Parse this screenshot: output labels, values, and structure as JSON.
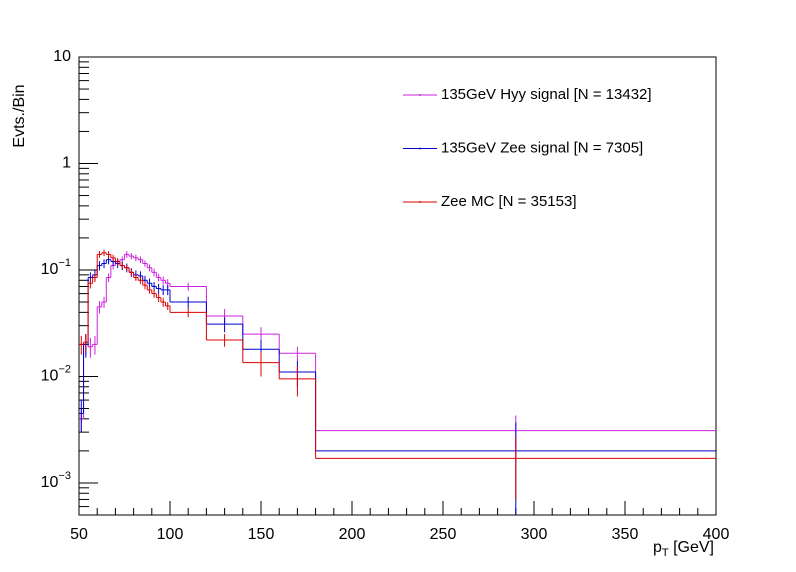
{
  "chart_data": {
    "type": "histogram",
    "y_label": "Evts./Bin",
    "x_label": "p_T [GeV]",
    "bins": [
      50,
      52.5,
      55,
      57.5,
      60,
      62.5,
      65,
      67.5,
      70,
      72.5,
      75,
      77.5,
      80,
      82.5,
      85,
      87.5,
      90,
      92.5,
      95,
      97.5,
      100,
      120,
      140,
      160,
      180,
      400
    ],
    "series": [
      {
        "name": "135GeV Hyy signal [N = 13432]",
        "color": "#cc22dd",
        "values": [
          0.004,
          0.02,
          0.019,
          0.02,
          0.045,
          0.05,
          0.085,
          0.11,
          0.12,
          0.125,
          0.14,
          0.135,
          0.13,
          0.125,
          0.115,
          0.105,
          0.095,
          0.085,
          0.08,
          0.075,
          0.07,
          0.037,
          0.025,
          0.0165,
          0.0031
        ],
        "errors": [
          0.001,
          0.004,
          0.004,
          0.004,
          0.006,
          0.006,
          0.008,
          0.009,
          0.009,
          0.009,
          0.01,
          0.009,
          0.009,
          0.009,
          0.008,
          0.008,
          0.008,
          0.007,
          0.007,
          0.007,
          0.006,
          0.006,
          0.004,
          0.0025,
          0.0012
        ]
      },
      {
        "name": "135GeV Zee signal [N = 7305]",
        "color": "#0000cc",
        "values": [
          0.0045,
          0.02,
          0.085,
          0.09,
          0.11,
          0.115,
          0.125,
          0.12,
          0.115,
          0.11,
          0.105,
          0.095,
          0.09,
          0.088,
          0.08,
          0.075,
          0.07,
          0.067,
          0.065,
          0.065,
          0.05,
          0.031,
          0.018,
          0.011,
          0.002
        ],
        "errors": [
          0.0015,
          0.005,
          0.01,
          0.01,
          0.011,
          0.011,
          0.012,
          0.011,
          0.011,
          0.01,
          0.01,
          0.009,
          0.009,
          0.009,
          0.008,
          0.008,
          0.007,
          0.007,
          0.007,
          0.007,
          0.006,
          0.005,
          0.004,
          0.003,
          0.0017
        ]
      },
      {
        "name": "Zee MC [N = 35153]",
        "color": "#dd0000",
        "values": [
          0.02,
          0.021,
          0.075,
          0.085,
          0.14,
          0.145,
          0.14,
          0.13,
          0.12,
          0.11,
          0.105,
          0.095,
          0.085,
          0.08,
          0.072,
          0.065,
          0.06,
          0.055,
          0.05,
          0.046,
          0.04,
          0.022,
          0.0135,
          0.0095,
          0.0017
        ],
        "errors": [
          0.004,
          0.004,
          0.008,
          0.008,
          0.01,
          0.01,
          0.01,
          0.009,
          0.008,
          0.008,
          0.007,
          0.007,
          0.006,
          0.006,
          0.006,
          0.005,
          0.005,
          0.005,
          0.005,
          0.004,
          0.004,
          0.003,
          0.0035,
          0.003,
          0.001
        ]
      }
    ],
    "xlim": [
      50,
      400
    ],
    "xticks": [
      50,
      100,
      150,
      200,
      250,
      300,
      350,
      400
    ],
    "ylim": [
      0.0005,
      10
    ],
    "ylog": true,
    "yticks": [
      {
        "value": 0.001,
        "label": "10^-3"
      },
      {
        "value": 0.01,
        "label": "10^-2"
      },
      {
        "value": 0.1,
        "label": "10^-1"
      },
      1,
      10
    ],
    "legend": "top-right"
  }
}
